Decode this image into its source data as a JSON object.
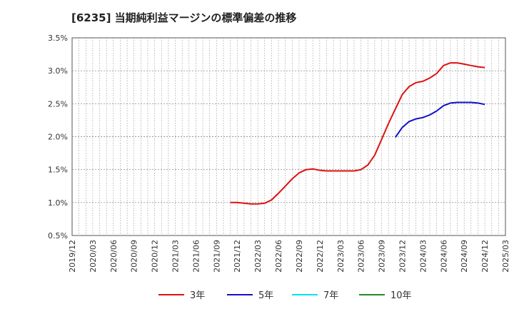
{
  "chart_data": {
    "type": "line",
    "title": "[6235]  当期純利益マージンの標準偏差の推移",
    "ylim": [
      0.5,
      3.5
    ],
    "yticks": [
      0.5,
      1.0,
      1.5,
      2.0,
      2.5,
      3.0,
      3.5
    ],
    "ytick_labels": [
      "0.5%",
      "1.0%",
      "1.5%",
      "2.0%",
      "2.5%",
      "3.0%",
      "3.5%"
    ],
    "x_start": "2019/12",
    "x_end": "2025/03",
    "xtick_labels": [
      "2019/12",
      "2020/03",
      "2020/06",
      "2020/09",
      "2020/12",
      "2021/03",
      "2021/06",
      "2021/09",
      "2021/12",
      "2022/03",
      "2022/06",
      "2022/09",
      "2022/12",
      "2023/03",
      "2023/06",
      "2023/09",
      "2023/12",
      "2024/03",
      "2024/06",
      "2024/09",
      "2024/12",
      "2025/03"
    ],
    "series": [
      {
        "name": "3年",
        "color": "#dd1111",
        "x": [
          "2021/11",
          "2021/12",
          "2022/01",
          "2022/02",
          "2022/03",
          "2022/04",
          "2022/05",
          "2022/06",
          "2022/07",
          "2022/08",
          "2022/09",
          "2022/10",
          "2022/11",
          "2022/12",
          "2023/01",
          "2023/02",
          "2023/03",
          "2023/04",
          "2023/05",
          "2023/06",
          "2023/07",
          "2023/08",
          "2023/09",
          "2023/10",
          "2023/11",
          "2023/12",
          "2024/01",
          "2024/02",
          "2024/03",
          "2024/04",
          "2024/05",
          "2024/06",
          "2024/07",
          "2024/08",
          "2024/09",
          "2024/10",
          "2024/11",
          "2024/12"
        ],
        "values": [
          1.0,
          1.0,
          0.99,
          0.98,
          0.98,
          0.99,
          1.04,
          1.14,
          1.25,
          1.36,
          1.45,
          1.5,
          1.51,
          1.49,
          1.48,
          1.48,
          1.48,
          1.48,
          1.48,
          1.5,
          1.57,
          1.72,
          1.96,
          2.2,
          2.42,
          2.64,
          2.76,
          2.82,
          2.84,
          2.89,
          2.96,
          3.08,
          3.12,
          3.12,
          3.1,
          3.08,
          3.06,
          3.05
        ]
      },
      {
        "name": "5年",
        "color": "#1010cc",
        "x": [
          "2023/11",
          "2023/12",
          "2024/01",
          "2024/02",
          "2024/03",
          "2024/04",
          "2024/05",
          "2024/06",
          "2024/07",
          "2024/08",
          "2024/09",
          "2024/10",
          "2024/11",
          "2024/12"
        ],
        "values": [
          1.99,
          2.14,
          2.23,
          2.27,
          2.29,
          2.33,
          2.39,
          2.47,
          2.51,
          2.52,
          2.52,
          2.52,
          2.51,
          2.49
        ]
      },
      {
        "name": "7年",
        "color": "#00e5ee",
        "x": [],
        "values": []
      },
      {
        "name": "10年",
        "color": "#228b22",
        "x": [],
        "values": []
      }
    ]
  }
}
